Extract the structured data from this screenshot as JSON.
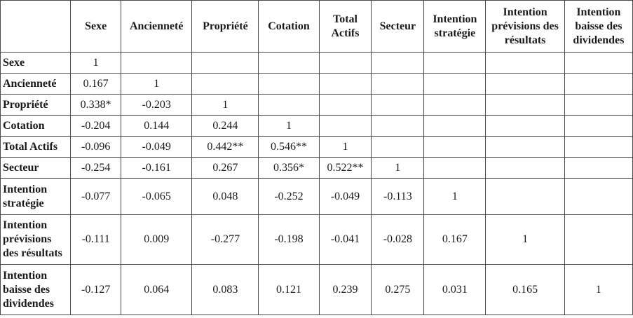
{
  "table": {
    "columns": [
      "Sexe",
      "Ancienneté",
      "Propriété",
      "Cotation",
      "Total Actifs",
      "Secteur",
      "Intention stratégie",
      "Intention prévisions des résultats",
      "Intention baisse des dividendes"
    ],
    "rows": [
      {
        "label": "Sexe",
        "cells": [
          "1",
          "",
          "",
          "",
          "",
          "",
          "",
          "",
          ""
        ]
      },
      {
        "label": "Ancienneté",
        "cells": [
          "0.167",
          "1",
          "",
          "",
          "",
          "",
          "",
          "",
          ""
        ]
      },
      {
        "label": "Propriété",
        "cells": [
          "0.338*",
          "-0.203",
          "1",
          "",
          "",
          "",
          "",
          "",
          ""
        ]
      },
      {
        "label": "Cotation",
        "cells": [
          "-0.204",
          "0.144",
          "0.244",
          "1",
          "",
          "",
          "",
          "",
          ""
        ]
      },
      {
        "label": "Total Actifs",
        "cells": [
          "-0.096",
          "-0.049",
          "0.442**",
          "0.546**",
          "1",
          "",
          "",
          "",
          ""
        ]
      },
      {
        "label": "Secteur",
        "cells": [
          "-0.254",
          "-0.161",
          "0.267",
          "0.356*",
          "0.522**",
          "1",
          "",
          "",
          ""
        ]
      },
      {
        "label": "Intention stratégie",
        "cells": [
          "-0.077",
          "-0.065",
          "0.048",
          "-0.252",
          "-0.049",
          "-0.113",
          "1",
          "",
          ""
        ]
      },
      {
        "label": "Intention prévisions des résultats",
        "cells": [
          "-0.111",
          "0.009",
          "-0.277",
          "-0.198",
          "-0.041",
          "-0.028",
          "0.167",
          "1",
          ""
        ]
      },
      {
        "label": "Intention baisse des dividendes",
        "cells": [
          "-0.127",
          "0.064",
          "0.083",
          "0.121",
          "0.239",
          "0.275",
          "0.031",
          "0.165",
          "1"
        ]
      }
    ]
  }
}
